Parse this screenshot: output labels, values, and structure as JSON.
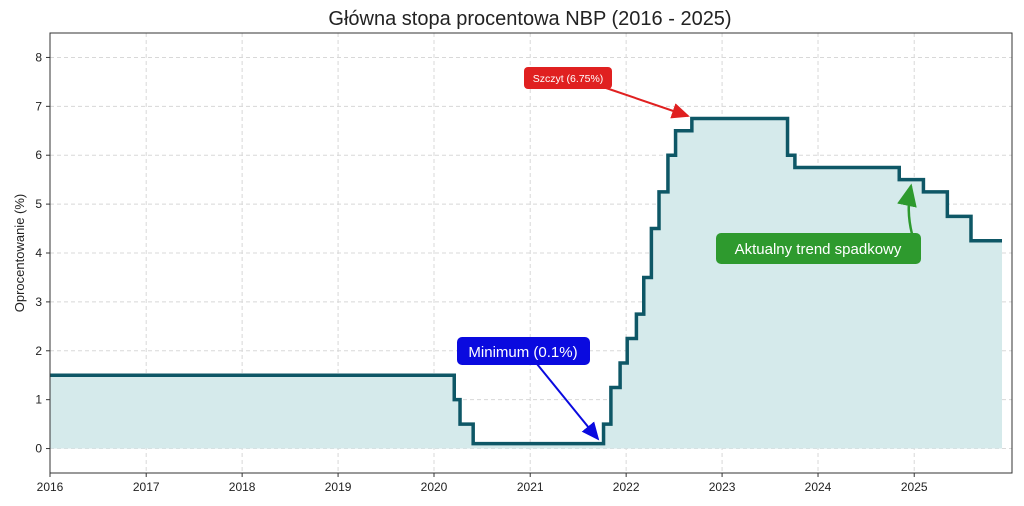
{
  "chart_data": {
    "type": "line",
    "title": "Główna stopa procentowa NBP (2016 - 2025)",
    "xlabel": "",
    "ylabel": "Oprocentowanie (%)",
    "xlim": [
      "2016-01-01",
      "2026-01-08"
    ],
    "ylim": [
      -0.5,
      8.5
    ],
    "x_ticks": [
      "2016",
      "2017",
      "2018",
      "2019",
      "2020",
      "2021",
      "2022",
      "2023",
      "2024",
      "2025"
    ],
    "y_ticks": [
      "0",
      "1",
      "2",
      "3",
      "4",
      "5",
      "6",
      "7",
      "8"
    ],
    "grid": true,
    "step": true,
    "filled": true,
    "colors": {
      "line": "#0e5766",
      "fill": "#d5eaeb",
      "grid": "#d8d8d8"
    },
    "series": [
      {
        "x": [
          "2016-01-01",
          "2020-03-18",
          "2020-04-09",
          "2020-05-29",
          "2021-10-07",
          "2021-11-04",
          "2021-12-09",
          "2022-01-05",
          "2022-02-09",
          "2022-03-09",
          "2022-04-07",
          "2022-05-06",
          "2022-06-09",
          "2022-07-08",
          "2022-09-08",
          "2023-09-07",
          "2023-10-05",
          "2024-11-05",
          "2025-02-05",
          "2025-05-07",
          "2025-08-05",
          "2025-12-01"
        ],
        "y": [
          1.5,
          1.0,
          0.5,
          0.1,
          0.5,
          1.25,
          1.75,
          2.25,
          2.75,
          3.5,
          4.5,
          5.25,
          6.0,
          6.5,
          6.75,
          6.0,
          5.75,
          5.5,
          5.25,
          4.75,
          4.25,
          4.25
        ]
      }
    ],
    "annotations": [
      {
        "text": "Szczyt (6.75%)",
        "target": [
          "2022-09-08",
          6.75
        ],
        "color": "#e02020"
      },
      {
        "text": "Minimum (0.1%)",
        "target": [
          "2021-10-01",
          0.1
        ],
        "color": "#0a0adf"
      },
      {
        "text": "Aktualny trend spadkowy",
        "target": [
          "2025-01-01",
          5.5
        ],
        "color": "#2e9a2e"
      }
    ]
  }
}
